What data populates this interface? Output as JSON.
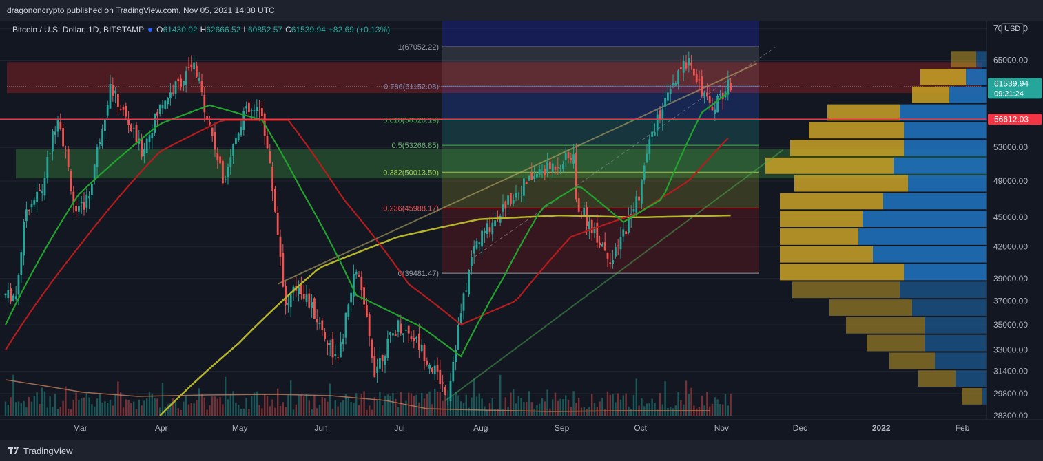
{
  "header": {
    "published": "dragononcrypto published on TradingView.com, Nov 05, 2021 14:38 UTC"
  },
  "legend": {
    "symbol": "Bitcoin / U.S. Dollar, 1D, BITSTAMP",
    "open_label": "O",
    "open": "61430.02",
    "high_label": "H",
    "high": "62666.52",
    "low_label": "L",
    "low": "60852.57",
    "close_label": "C",
    "close": "61539.94",
    "change": "+82.69 (+0.13%)"
  },
  "currency_button": "USD",
  "footer": {
    "brand": "TradingView"
  },
  "colors": {
    "up": "#26a69a",
    "down": "#ef5350",
    "sma_fast": "#22a32d",
    "sma_mid": "#b71c1c",
    "sma_slow": "#b5b52a",
    "bg": "#131722"
  },
  "chart_data": {
    "type": "candlestick",
    "y_scale": "log",
    "ylim": [
      28300,
      70500
    ],
    "x_tick_labels": [
      "Mar",
      "Apr",
      "May",
      "Jun",
      "Jul",
      "Aug",
      "Sep",
      "Oct",
      "Nov",
      "Dec",
      "2022",
      "Feb"
    ],
    "y_tick_labels": [
      "70000.00",
      "65000.00",
      "53000.00",
      "49000.00",
      "45000.00",
      "42000.00",
      "39000.00",
      "37000.00",
      "35000.00",
      "33000.00",
      "31400.00",
      "29800.00",
      "28300.00"
    ],
    "price_badges": [
      {
        "label": "61539.94",
        "sub": "09:21:24",
        "value": 61539.94,
        "color": "#26a69a"
      },
      {
        "label": "56612.03",
        "value": 56612.03,
        "color": "#f23645"
      }
    ],
    "fib_levels": [
      {
        "label": "1(67052.22)",
        "ratio": 1,
        "price": 67052.22
      },
      {
        "label": "0.786(61152.08)",
        "ratio": 0.786,
        "price": 61152.08
      },
      {
        "label": "0.618(56520.19)",
        "ratio": 0.618,
        "price": 56520.19
      },
      {
        "label": "0.5(53266.85)",
        "ratio": 0.5,
        "price": 53266.85
      },
      {
        "label": "0.382(50013.50)",
        "ratio": 0.382,
        "price": 50013.5
      },
      {
        "label": "0.236(45988.17)",
        "ratio": 0.236,
        "price": 45988.17
      },
      {
        "label": "0(39481.47)",
        "ratio": 0,
        "price": 39481.47
      }
    ],
    "horizontal_line": 56612.03,
    "zones": [
      {
        "name": "resistance",
        "from": 60200,
        "to": 64700
      },
      {
        "name": "support",
        "from": 49300,
        "to": 52800
      }
    ],
    "price_path": [
      [
        "2021-02-05",
        37500
      ],
      [
        "2021-02-09",
        46000
      ],
      [
        "2021-02-15",
        48000
      ],
      [
        "2021-02-21",
        57500
      ],
      [
        "2021-02-28",
        45000
      ],
      [
        "2021-03-05",
        47500
      ],
      [
        "2021-03-13",
        61000
      ],
      [
        "2021-03-25",
        52500
      ],
      [
        "2021-04-02",
        59000
      ],
      [
        "2021-04-14",
        64000
      ],
      [
        "2021-04-25",
        49000
      ],
      [
        "2021-05-03",
        57500
      ],
      [
        "2021-05-10",
        57500
      ],
      [
        "2021-05-19",
        36500
      ],
      [
        "2021-05-24",
        38500
      ],
      [
        "2021-06-08",
        32000
      ],
      [
        "2021-06-15",
        40000
      ],
      [
        "2021-06-22",
        31500
      ],
      [
        "2021-07-01",
        35000
      ],
      [
        "2021-07-07",
        34000
      ],
      [
        "2021-07-20",
        29800
      ],
      [
        "2021-07-30",
        42000
      ],
      [
        "2021-08-14",
        47500
      ],
      [
        "2021-08-23",
        49800
      ],
      [
        "2021-09-06",
        52000
      ],
      [
        "2021-09-07",
        46500
      ],
      [
        "2021-09-21",
        40600
      ],
      [
        "2021-10-01",
        47500
      ],
      [
        "2021-10-06",
        55000
      ],
      [
        "2021-10-20",
        65500
      ],
      [
        "2021-10-28",
        58000
      ],
      [
        "2021-11-05",
        61540
      ]
    ],
    "sma_fast_path": [
      [
        "2021-02-01",
        35000
      ],
      [
        "2021-03-01",
        47500
      ],
      [
        "2021-04-01",
        56000
      ],
      [
        "2021-04-20",
        58500
      ],
      [
        "2021-05-10",
        56500
      ],
      [
        "2021-05-25",
        48000
      ],
      [
        "2021-06-15",
        37500
      ],
      [
        "2021-07-10",
        34800
      ],
      [
        "2021-07-25",
        32500
      ],
      [
        "2021-08-10",
        39000
      ],
      [
        "2021-08-25",
        46000
      ],
      [
        "2021-09-08",
        48500
      ],
      [
        "2021-09-25",
        44500
      ],
      [
        "2021-10-10",
        47000
      ],
      [
        "2021-10-25",
        57500
      ],
      [
        "2021-11-05",
        60500
      ]
    ],
    "sma_mid_path": [
      [
        "2021-02-01",
        33000
      ],
      [
        "2021-03-01",
        42000
      ],
      [
        "2021-04-01",
        52500
      ],
      [
        "2021-04-25",
        56500
      ],
      [
        "2021-05-20",
        56500
      ],
      [
        "2021-06-10",
        47000
      ],
      [
        "2021-07-05",
        38500
      ],
      [
        "2021-07-25",
        35000
      ],
      [
        "2021-08-15",
        37000
      ],
      [
        "2021-09-05",
        43000
      ],
      [
        "2021-10-01",
        45500
      ],
      [
        "2021-10-20",
        49000
      ],
      [
        "2021-11-05",
        54500
      ]
    ],
    "sma_slow_path": [
      [
        "2021-04-01",
        28300
      ],
      [
        "2021-05-01",
        33500
      ],
      [
        "2021-06-01",
        40000
      ],
      [
        "2021-07-01",
        43000
      ],
      [
        "2021-08-01",
        44800
      ],
      [
        "2021-09-01",
        45200
      ],
      [
        "2021-10-01",
        45000
      ],
      [
        "2021-11-05",
        45200
      ]
    ],
    "volume_profile_up_widths": [
      0.12,
      0.22,
      0.18,
      0.35,
      0.46,
      0.55,
      0.62,
      0.55,
      0.5,
      0.4,
      0.38,
      0.45,
      0.6,
      0.52,
      0.4,
      0.38,
      0.28,
      0.22,
      0.18,
      0.1
    ],
    "volume_profile_down_widths": [
      0.05,
      0.1,
      0.18,
      0.42,
      0.4,
      0.4,
      0.45,
      0.38,
      0.5,
      0.6,
      0.62,
      0.55,
      0.4,
      0.42,
      0.36,
      0.3,
      0.3,
      0.25,
      0.15,
      0.02
    ]
  }
}
